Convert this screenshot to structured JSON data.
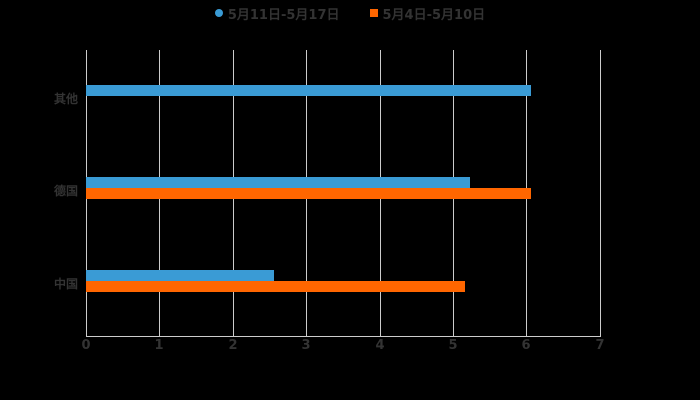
{
  "chart_data": {
    "type": "bar",
    "orientation": "horizontal",
    "categories": [
      "中国",
      "德国",
      "其他"
    ],
    "series": [
      {
        "name": "5月11日-5月17日",
        "color": "#3a9bd5",
        "values": [
          2.56,
          5.23,
          6.06
        ]
      },
      {
        "name": "5月4日-5月10日",
        "color": "#ff6600",
        "values": [
          5.16,
          6.06,
          0
        ]
      }
    ],
    "title": "",
    "xlabel": "",
    "ylabel": "",
    "xlim": [
      0,
      7
    ],
    "xticks": [
      "0",
      "1",
      "2",
      "3",
      "4",
      "5",
      "6",
      "7"
    ],
    "grid": true,
    "legend_position": "top"
  },
  "legend": [
    {
      "label": "5月11日-5月17日",
      "color": "#3a9bd5",
      "marker": "circle"
    },
    {
      "label": "5月4日-5月10日",
      "color": "#ff6600",
      "marker": "square"
    }
  ]
}
